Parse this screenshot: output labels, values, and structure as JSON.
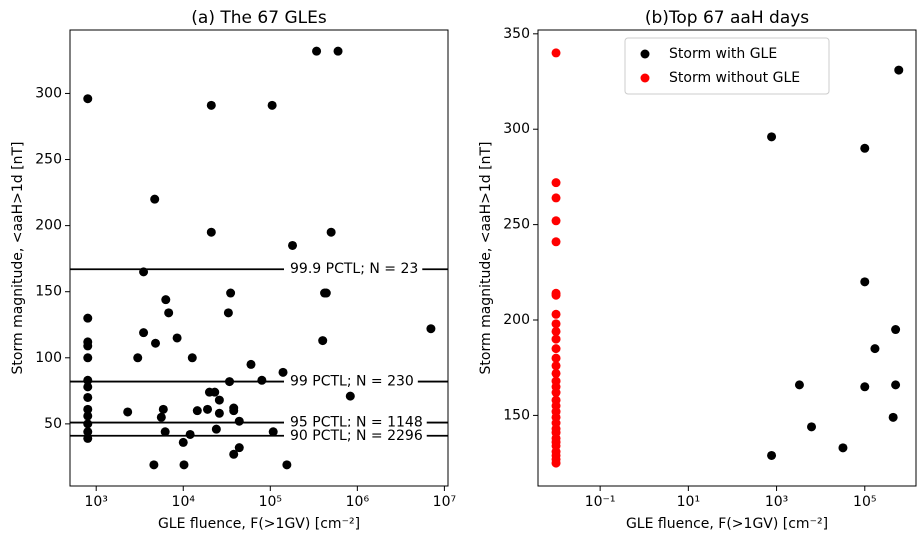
{
  "chart_data": [
    {
      "type": "scatter",
      "title": "(a) The 67 GLEs",
      "xlabel": "GLE fluence, F(>1GV) [cm⁻²]",
      "ylabel": "Storm magnitude, <aaH>1d [nT]",
      "xscale": "log",
      "xlim": [
        500,
        11000000
      ],
      "ylim": [
        3,
        348
      ],
      "xticks": [
        {
          "value": 1000,
          "label": "10³"
        },
        {
          "value": 10000,
          "label": "10⁴"
        },
        {
          "value": 100000,
          "label": "10⁵"
        },
        {
          "value": 1000000,
          "label": "10⁶"
        },
        {
          "value": 10000000,
          "label": "10⁷"
        }
      ],
      "yticks": [
        50,
        100,
        150,
        200,
        250,
        300
      ],
      "series": [
        {
          "color": "#000000",
          "x": [
            800,
            340000,
            600000,
            21000,
            105000,
            4700,
            21000,
            180000,
            500000,
            3500,
            35000,
            420000,
            440000,
            6300,
            6800,
            33000,
            800,
            3500,
            8500,
            4800,
            800,
            800,
            400000,
            7000000,
            3000,
            12700,
            800,
            60000,
            140000,
            80000,
            34000,
            800,
            800,
            20000,
            23000,
            26000,
            800,
            830000,
            38000,
            14500,
            5900,
            2300,
            38000,
            800,
            800,
            19000,
            26000,
            5600,
            44000,
            800,
            6200,
            24000,
            108000,
            800,
            800,
            12000,
            10000,
            44000,
            38000,
            4600,
            10200,
            155000
          ],
          "values": [
            296,
            332,
            332,
            291,
            291,
            220,
            195,
            185,
            195,
            165,
            149,
            149,
            149,
            144,
            134,
            134,
            130,
            119,
            115,
            111,
            112,
            109,
            113,
            122,
            100,
            100,
            100,
            95,
            89,
            83,
            82,
            83,
            78,
            74,
            74,
            68,
            70,
            71,
            62,
            60,
            61,
            59,
            60,
            61,
            56,
            61,
            58,
            55,
            52,
            50,
            44,
            46,
            44,
            44,
            39,
            42,
            36,
            32,
            27,
            19,
            19,
            19
          ]
        }
      ],
      "hlines": [
        {
          "value": 167,
          "label": "99.9 PCTL; N = 23"
        },
        {
          "value": 82,
          "label": "99 PCTL; N = 230"
        },
        {
          "value": 51,
          "label": "95 PCTL; N = 1148"
        },
        {
          "value": 41,
          "label": "90 PCTL; N = 2296"
        }
      ]
    },
    {
      "type": "scatter",
      "title": "(b)Top 67 aaH days",
      "xlabel": "GLE fluence, F(>1GV) [cm⁻²]",
      "ylabel": "Storm magnitude, <aaH>1d [nT]",
      "xscale": "log",
      "xlim": [
        0.0039,
        1450000
      ],
      "ylim": [
        113,
        352
      ],
      "xticks": [
        {
          "value": 0.1,
          "label": "10⁻¹"
        },
        {
          "value": 10,
          "label": "10¹"
        },
        {
          "value": 1000,
          "label": "10³"
        },
        {
          "value": 100000,
          "label": "10⁵"
        }
      ],
      "yticks": [
        150,
        200,
        250,
        300,
        350
      ],
      "legend": "upper center",
      "series": [
        {
          "name": "Storm with GLE",
          "color": "#000000",
          "x": [
            770,
            100000,
            590000,
            100000,
            500000,
            170000,
            3300,
            100000,
            500000,
            440000,
            6200,
            32000,
            770
          ],
          "values": [
            296,
            290,
            331,
            220,
            195,
            185,
            166,
            165,
            166,
            149,
            144,
            133,
            129
          ]
        },
        {
          "name": "Storm without GLE",
          "color": "#ff0000",
          "x": [
            0.01,
            0.01,
            0.01,
            0.01,
            0.01,
            0.01,
            0.01,
            0.01,
            0.01,
            0.01,
            0.01,
            0.01,
            0.01,
            0.01,
            0.01,
            0.01,
            0.01,
            0.01,
            0.01,
            0.01,
            0.01,
            0.01,
            0.01,
            0.01,
            0.01,
            0.01,
            0.01,
            0.01,
            0.01,
            0.01,
            0.01,
            0.01
          ],
          "values": [
            340,
            272,
            264,
            252,
            241,
            214,
            213,
            203,
            198,
            194,
            190,
            185,
            180,
            176,
            172,
            168,
            165,
            162,
            158,
            155,
            152,
            149,
            146,
            143,
            141,
            138,
            136,
            134,
            131,
            129,
            127,
            125
          ]
        }
      ]
    }
  ]
}
